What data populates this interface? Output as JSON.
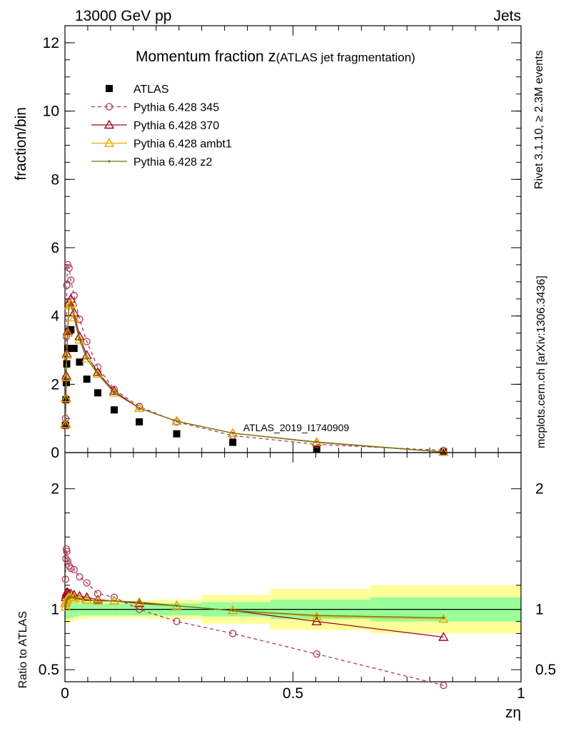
{
  "header": {
    "left": "13000 GeV pp",
    "right": "Jets"
  },
  "side_labels": {
    "rivet": "Rivet 3.1.10, ≥ 2.3M events",
    "mcplots": "mcplots.cern.ch [arXiv:1306.3436]"
  },
  "watermark": "ATLAS_2019_I1740909",
  "colors": {
    "atlas": "#000000",
    "p345": "#b03a55",
    "p370": "#9b0a22",
    "ambt1": "#f0a800",
    "z2": "#6b7a10",
    "band_inner": "#99ff99",
    "band_outer": "#ffff99"
  },
  "chart_data": [
    {
      "type": "line",
      "panel": "main",
      "title_main": "Momentum fraction ",
      "title_var": "z",
      "title_sub": "(ATLAS jet fragmentation)",
      "ylabel": "fraction/bin",
      "xlim": [
        0,
        1
      ],
      "ylim": [
        0,
        12.5
      ],
      "yticks": [
        "0",
        "2",
        "4",
        "6",
        "8",
        "10",
        "12"
      ],
      "x": [
        0.0012,
        0.002,
        0.003,
        0.004,
        0.006,
        0.009,
        0.013,
        0.02,
        0.032,
        0.048,
        0.072,
        0.108,
        0.163,
        0.245,
        0.368,
        0.552,
        0.83
      ],
      "series": [
        {
          "name": "ATLAS",
          "marker": "square",
          "values": [
            0.8,
            1.55,
            2.05,
            2.6,
            3.05,
            3.55,
            3.6,
            3.05,
            2.65,
            2.15,
            1.75,
            1.25,
            0.9,
            0.55,
            0.3,
            0.1,
            0.02
          ]
        },
        {
          "name": "Pythia 6.428 345",
          "marker": "circle",
          "dash": true,
          "values": [
            1.0,
            2.2,
            3.4,
            4.9,
            5.5,
            5.4,
            5.05,
            4.6,
            3.9,
            3.25,
            2.5,
            1.85,
            1.35,
            0.9,
            0.5,
            0.24,
            0.065
          ]
        },
        {
          "name": "Pythia 6.428 370",
          "marker": "triangle",
          "values": [
            0.85,
            1.6,
            2.25,
            2.9,
            3.55,
            4.4,
            4.5,
            4.1,
            3.4,
            2.85,
            2.35,
            1.8,
            1.3,
            0.92,
            0.57,
            0.3,
            0.016
          ]
        },
        {
          "name": "Pythia 6.428 ambt1",
          "marker": "triangle",
          "values": [
            0.82,
            1.58,
            2.2,
            2.85,
            3.5,
            4.3,
            4.35,
            3.95,
            3.3,
            2.75,
            2.3,
            1.75,
            1.3,
            0.92,
            0.57,
            0.31,
            0.019
          ]
        },
        {
          "name": "Pythia 6.428 z2",
          "marker": "dot",
          "values": [
            0.82,
            1.58,
            2.2,
            2.85,
            3.5,
            4.3,
            4.35,
            3.95,
            3.3,
            2.75,
            2.3,
            1.75,
            1.3,
            0.92,
            0.57,
            0.31,
            0.019
          ]
        }
      ]
    },
    {
      "type": "line",
      "panel": "ratio",
      "ylabel": "Ratio to ATLAS",
      "xlabel": "zη",
      "xlim": [
        0,
        1
      ],
      "ylim": [
        0.4,
        2.3
      ],
      "yticks": [
        "0.5",
        "1",
        "2"
      ],
      "xticks": [
        "0",
        "0.5",
        "1"
      ],
      "x": [
        0.0012,
        0.002,
        0.003,
        0.004,
        0.006,
        0.009,
        0.013,
        0.02,
        0.032,
        0.048,
        0.072,
        0.108,
        0.163,
        0.245,
        0.368,
        0.552,
        0.83
      ],
      "band_x": [
        0,
        0.01,
        0.02,
        0.03,
        0.05,
        0.08,
        0.12,
        0.18,
        0.3,
        0.45,
        0.67,
        1.0
      ],
      "band_inner": [
        0.08,
        0.07,
        0.06,
        0.05,
        0.05,
        0.05,
        0.05,
        0.05,
        0.06,
        0.08,
        0.1
      ],
      "band_outer": [
        0.12,
        0.1,
        0.09,
        0.08,
        0.07,
        0.07,
        0.07,
        0.08,
        0.12,
        0.17,
        0.2
      ],
      "series": [
        {
          "name": "Pythia 6.428 345",
          "marker": "circle",
          "dash": true,
          "values": [
            1.25,
            1.42,
            1.5,
            1.48,
            1.4,
            1.36,
            1.34,
            1.33,
            1.27,
            1.22,
            1.13,
            1.1,
            1.0,
            0.9,
            0.8,
            0.63,
            0.37
          ]
        },
        {
          "name": "Pythia 6.428 370",
          "marker": "triangle",
          "values": [
            1.05,
            1.1,
            1.12,
            1.14,
            1.14,
            1.13,
            1.13,
            1.12,
            1.11,
            1.1,
            1.08,
            1.07,
            1.05,
            1.03,
            0.99,
            0.9,
            0.77
          ]
        },
        {
          "name": "Pythia 6.428 ambt1",
          "marker": "triangle",
          "values": [
            1.02,
            1.05,
            1.07,
            1.08,
            1.09,
            1.1,
            1.1,
            1.1,
            1.09,
            1.08,
            1.07,
            1.07,
            1.06,
            1.03,
            0.99,
            0.94,
            0.92
          ]
        },
        {
          "name": "Pythia 6.428 z2",
          "marker": "dot",
          "values": [
            1.02,
            1.05,
            1.07,
            1.08,
            1.09,
            1.1,
            1.1,
            1.1,
            1.09,
            1.08,
            1.07,
            1.07,
            1.06,
            1.03,
            0.99,
            0.95,
            0.93
          ]
        }
      ]
    }
  ]
}
